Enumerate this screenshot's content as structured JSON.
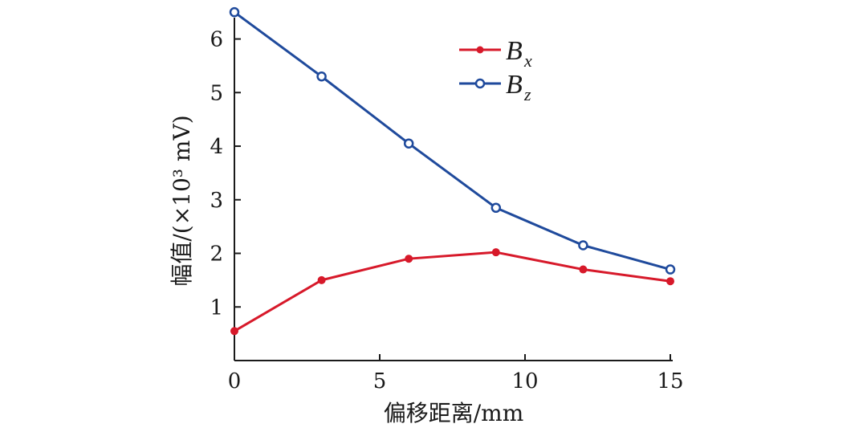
{
  "chart_data": {
    "type": "line",
    "xlabel": "偏移距离/mm",
    "ylabel": "幅值/(×10³ mV)",
    "xlim": [
      0,
      15
    ],
    "ylim": [
      0,
      6.6
    ],
    "xticks": [
      "0",
      "5",
      "10",
      "15"
    ],
    "yticks": [
      "1",
      "2",
      "3",
      "4",
      "5",
      "6"
    ],
    "x": [
      0,
      3,
      6,
      9,
      12,
      15
    ],
    "series": [
      {
        "name_base": "B",
        "name_sub": "x",
        "marker": "filled-dot",
        "color": "#d7192a",
        "values": [
          0.55,
          1.5,
          1.9,
          2.02,
          1.7,
          1.48
        ]
      },
      {
        "name_base": "B",
        "name_sub": "z",
        "marker": "open-circle",
        "color": "#1f4a9c",
        "values": [
          6.5,
          5.3,
          4.05,
          2.85,
          2.15,
          1.7
        ]
      }
    ],
    "legend_position": "top-right",
    "grid": false
  }
}
